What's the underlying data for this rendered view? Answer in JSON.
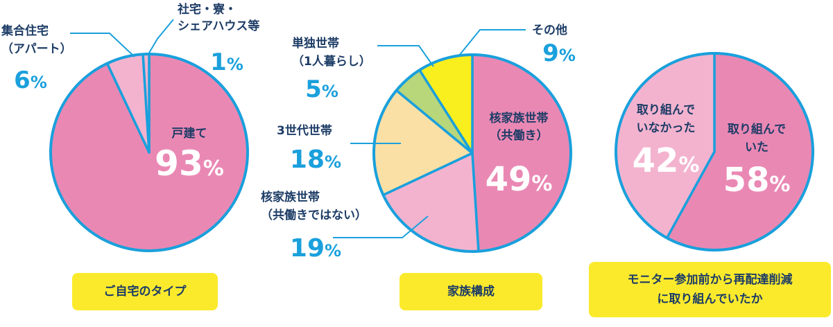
{
  "colors": {
    "outline": "#1aa0dc",
    "text_dark": "#1d3c66",
    "badge_bg": "#fbea2c",
    "pink_dark": "#ea88b4",
    "pink_light": "#f3b3cf",
    "cream": "#fbe0a5",
    "green": "#b8d67a",
    "yellow": "#f9ef1e"
  },
  "chart_data": [
    {
      "type": "pie",
      "caption": "ご自宅のタイプ",
      "slices": [
        {
          "label": "戸建て",
          "value": 93,
          "pct_text": "93",
          "color": "#ea88b4"
        },
        {
          "label": "集合住宅\n（アパート）",
          "value": 6,
          "pct_text": "6",
          "color": "#f3b3cf"
        },
        {
          "label": "社宅・寮・\nシェアハウス等",
          "value": 1,
          "pct_text": "1",
          "color": "#f3b3cf"
        }
      ]
    },
    {
      "type": "pie",
      "caption": "家族構成",
      "slices": [
        {
          "label": "核家族世帯\n（共働き）",
          "value": 49,
          "pct_text": "49",
          "color": "#ea88b4"
        },
        {
          "label": "核家族世帯\n（共働きではない）",
          "value": 19,
          "pct_text": "19",
          "color": "#f3b3cf"
        },
        {
          "label": "3世代世帯",
          "value": 18,
          "pct_text": "18",
          "color": "#fbe0a5"
        },
        {
          "label": "単独世帯\n（1人暮らし）",
          "value": 5,
          "pct_text": "5",
          "color": "#b8d67a"
        },
        {
          "label": "その他",
          "value": 9,
          "pct_text": "9",
          "color": "#f9ef1e"
        }
      ]
    },
    {
      "type": "pie",
      "caption": "モニター参加前から再配達削減\nに取り組んでいたか",
      "slices": [
        {
          "label": "取り組んで\nいた",
          "value": 58,
          "pct_text": "58",
          "color": "#ea88b4"
        },
        {
          "label": "取り組んで\nいなかった",
          "value": 42,
          "pct_text": "42",
          "color": "#f3b3cf"
        }
      ]
    }
  ]
}
